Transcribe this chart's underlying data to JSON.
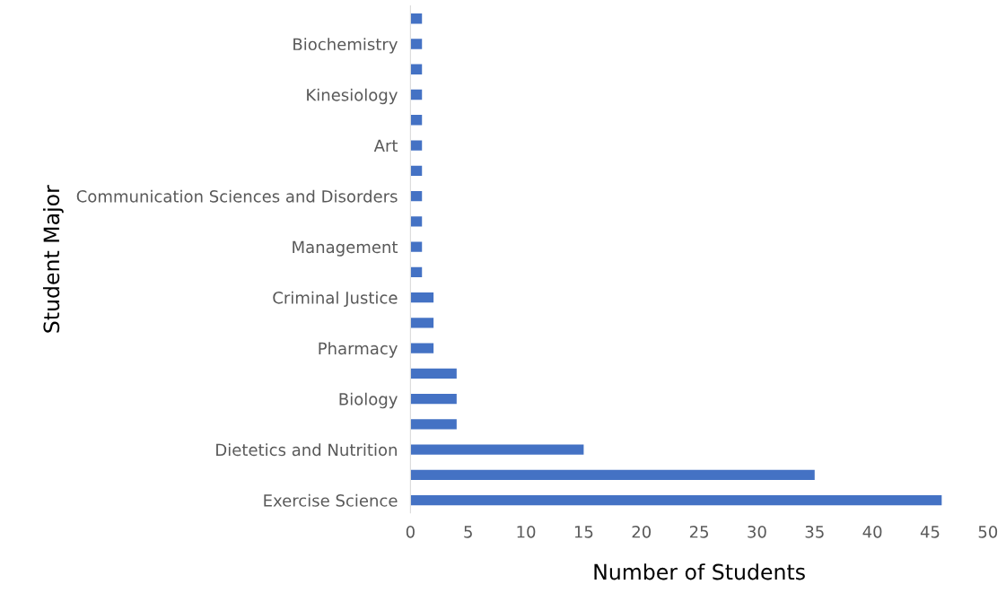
{
  "chart_data": {
    "type": "bar",
    "orientation": "horizontal",
    "xlabel": "Number of Students",
    "ylabel": "Student Major",
    "categories": [
      null,
      "Biochemistry",
      null,
      "Kinesiology",
      null,
      "Art",
      null,
      "Communication Sciences and Disorders",
      null,
      "Management",
      null,
      "Criminal Justice",
      null,
      "Pharmacy",
      null,
      "Biology",
      null,
      "Dietetics and Nutrition",
      null,
      "Exercise Science"
    ],
    "values": [
      1,
      1,
      1,
      1,
      1,
      1,
      1,
      1,
      1,
      1,
      1,
      2,
      2,
      2,
      4,
      4,
      4,
      15,
      35,
      46
    ],
    "color": "#4472c4",
    "xlim": [
      0,
      50
    ],
    "xticks": [
      0,
      5,
      10,
      15,
      20,
      25,
      30,
      35,
      40,
      45,
      50
    ],
    "grid": false
  }
}
